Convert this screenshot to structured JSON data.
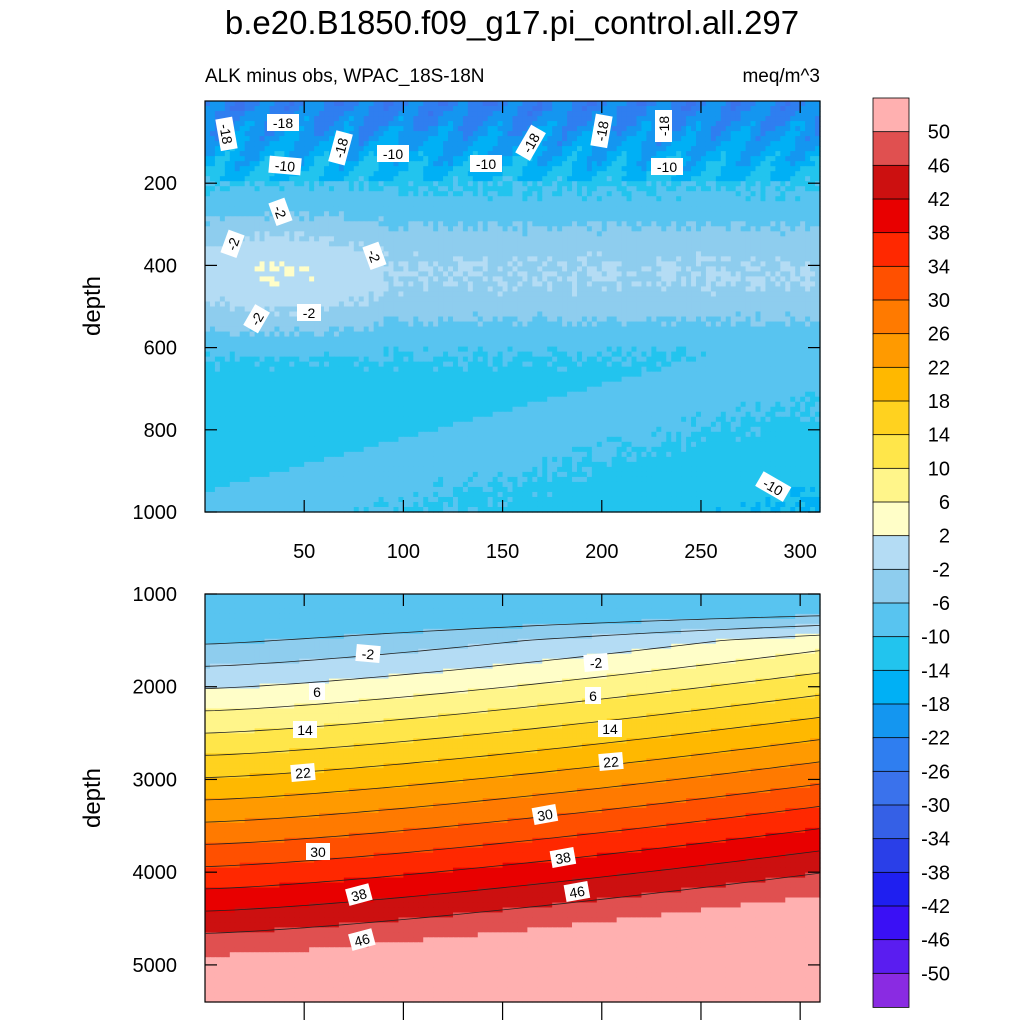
{
  "chart_data": {
    "type": "contour",
    "title": "b.e20.B1850.f09_g17.pi_control.all.297",
    "subtitle_left": "ALK minus obs, WPAC_18S-18N",
    "subtitle_right": "meq/m^3",
    "units": "meq/m^3",
    "colorbar": {
      "levels": [
        -50,
        -46,
        -42,
        -38,
        -34,
        -30,
        -26,
        -22,
        -18,
        -14,
        -10,
        -6,
        -2,
        2,
        6,
        10,
        14,
        18,
        22,
        26,
        30,
        34,
        38,
        42,
        46,
        50
      ],
      "tick_labels": [
        "50",
        "46",
        "42",
        "38",
        "34",
        "30",
        "26",
        "22",
        "18",
        "14",
        "10",
        "6",
        "2",
        "-2",
        "-6",
        "-10",
        "-14",
        "-18",
        "-22",
        "-26",
        "-30",
        "-34",
        "-38",
        "-42",
        "-46",
        "-50"
      ],
      "colors": [
        "#8a2be2",
        "#5a1df0",
        "#3a10f5",
        "#1f1ff0",
        "#2a3fe8",
        "#3560e6",
        "#3a72ec",
        "#2f7ef0",
        "#1496f0",
        "#00b0f5",
        "#22c4ee",
        "#58c4f0",
        "#8ecdee",
        "#b4dcf4",
        "#fffec8",
        "#fff58a",
        "#ffe64a",
        "#ffd21f",
        "#ffb800",
        "#ff9a00",
        "#ff7a00",
        "#ff5000",
        "#ff2800",
        "#e80000",
        "#cc1010",
        "#e05050",
        "#ffb0b0"
      ]
    },
    "panels": [
      {
        "name": "upper",
        "ylabel": "depth",
        "xlim": [
          0,
          310
        ],
        "ylim": [
          0,
          1000
        ],
        "xticks": [
          "50",
          "100",
          "150",
          "200",
          "250",
          "300"
        ],
        "xtick_values": [
          50,
          100,
          150,
          200,
          250,
          300
        ],
        "yticks": [
          "200",
          "400",
          "600",
          "800",
          "1000"
        ],
        "ytick_values": [
          200,
          400,
          600,
          800,
          1000
        ],
        "contour_labels": [
          "-18",
          "-18",
          "-18",
          "-18",
          "-18",
          "-18",
          "-10",
          "-10",
          "-10",
          "-10",
          "-2",
          "-2",
          "-2",
          "-2",
          "-2",
          "-10"
        ]
      },
      {
        "name": "lower",
        "ylabel": "depth",
        "xlim": [
          0,
          310
        ],
        "ylim": [
          1000,
          5400
        ],
        "yticks": [
          "1000",
          "2000",
          "3000",
          "4000",
          "5000"
        ],
        "ytick_values": [
          1000,
          2000,
          3000,
          4000,
          5000
        ],
        "contour_labels": [
          "-2",
          "-2",
          "6",
          "6",
          "14",
          "14",
          "22",
          "22",
          "30",
          "30",
          "38",
          "38",
          "46",
          "46"
        ]
      }
    ]
  }
}
